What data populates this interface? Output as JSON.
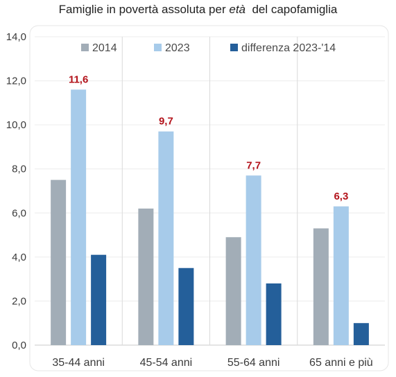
{
  "title": {
    "pre": "Famiglie in povertà assoluta per ",
    "emph": "età",
    "post": "  del capofamiglia"
  },
  "colors": {
    "s2014": "#a2adb7",
    "s2023": "#a7cbea",
    "sdiff": "#245f9a",
    "label": "#b3131b",
    "grid": "#ececec",
    "divider": "#d9d9d9",
    "axis": "#c8c8c8"
  },
  "chart_data": {
    "type": "bar",
    "title": "Famiglie in povertà assoluta per età  del capofamiglia",
    "categories": [
      "35-44 anni",
      "45-54 anni",
      "55-64 anni",
      "65 anni e più"
    ],
    "series": [
      {
        "name": "2014",
        "values": [
          7.5,
          6.2,
          4.9,
          5.3
        ]
      },
      {
        "name": "2023",
        "values": [
          11.6,
          9.7,
          7.7,
          6.3
        ]
      },
      {
        "name": "differenza 2023-'14",
        "values": [
          4.1,
          3.5,
          2.8,
          1.0
        ]
      }
    ],
    "data_labels": [
      "11,6",
      "9,7",
      "7,7",
      "6,3"
    ],
    "yticks": [
      "0,0",
      "2,0",
      "4,0",
      "6,0",
      "8,0",
      "10,0",
      "12,0",
      "14,0"
    ],
    "ylim": [
      0,
      14
    ],
    "xlabel": "",
    "ylabel": "",
    "grid": true,
    "legend_position": "top"
  }
}
